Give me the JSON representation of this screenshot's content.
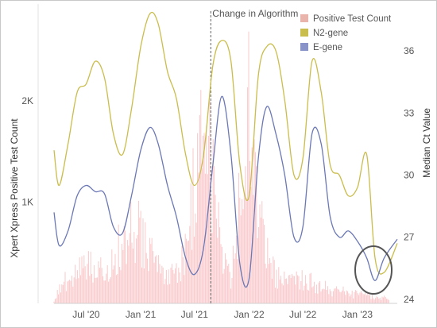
{
  "chart_data": {
    "type": "line",
    "title": "",
    "xlabel": "",
    "ylabel_left": "Xpert Xpress Positive Test Count",
    "ylabel_right": "Median Ct Value",
    "x_tick_labels": [
      "Jul '20",
      "Jan '21",
      "Jul '21",
      "Jan '22",
      "Jul '22",
      "Jan '23"
    ],
    "x_range": [
      "2020-03-15",
      "2023-05-15"
    ],
    "left_axis": {
      "range": [
        0,
        2900
      ],
      "ticks": [
        1000,
        2000
      ],
      "tick_labels": [
        "1K",
        "2K"
      ]
    },
    "right_axis": {
      "range": [
        23.8,
        38
      ],
      "ticks": [
        24,
        27,
        30,
        33,
        36
      ],
      "tick_labels": [
        "24",
        "27",
        "30",
        "33",
        "36"
      ]
    },
    "annotation": {
      "label": "Change in Algorithm",
      "date": "2021-08-25"
    },
    "legend": {
      "position": "top-right",
      "entries": [
        {
          "label": "Positive Test Count",
          "color": "#e8b4ac"
        },
        {
          "label": "N2-gene",
          "color": "#c9bd4e"
        },
        {
          "label": "E-gene",
          "color": "#8a93c8"
        }
      ]
    },
    "series": [
      {
        "name": "Positive Test Count",
        "axis": "left",
        "kind": "bars",
        "color": "#f9c9cb",
        "x": [
          "2020-03-15",
          "2020-04-01",
          "2020-05-01",
          "2020-06-01",
          "2020-07-01",
          "2020-08-01",
          "2020-09-01",
          "2020-10-01",
          "2020-11-01",
          "2020-12-01",
          "2021-01-01",
          "2021-02-01",
          "2021-03-01",
          "2021-04-01",
          "2021-05-01",
          "2021-06-01",
          "2021-07-01",
          "2021-08-01",
          "2021-09-01",
          "2021-10-01",
          "2021-11-01",
          "2021-12-01",
          "2022-01-01",
          "2022-02-01",
          "2022-03-01",
          "2022-04-01",
          "2022-05-01",
          "2022-06-01",
          "2022-07-01",
          "2022-08-01",
          "2022-09-01",
          "2022-10-01",
          "2022-11-01",
          "2022-12-01",
          "2023-01-01",
          "2023-02-01",
          "2023-03-01",
          "2023-04-01",
          "2023-05-15"
        ],
        "y": [
          50,
          250,
          350,
          450,
          550,
          600,
          500,
          650,
          900,
          1150,
          1000,
          700,
          500,
          450,
          400,
          800,
          1700,
          2450,
          1800,
          700,
          300,
          1500,
          2800,
          1400,
          700,
          400,
          350,
          400,
          350,
          300,
          250,
          200,
          180,
          150,
          130,
          120,
          100,
          80,
          50
        ]
      },
      {
        "name": "N2-gene",
        "axis": "right",
        "color": "#cabd4c",
        "x": [
          "2020-03-15",
          "2020-04-01",
          "2020-05-01",
          "2020-06-01",
          "2020-07-01",
          "2020-08-01",
          "2020-09-01",
          "2020-10-01",
          "2020-11-01",
          "2020-12-01",
          "2021-01-01",
          "2021-02-01",
          "2021-03-01",
          "2021-04-01",
          "2021-05-01",
          "2021-06-01",
          "2021-07-01",
          "2021-08-01",
          "2021-09-01",
          "2021-10-01",
          "2021-11-01",
          "2021-12-01",
          "2022-01-01",
          "2022-02-01",
          "2022-03-01",
          "2022-04-01",
          "2022-05-01",
          "2022-06-01",
          "2022-07-01",
          "2022-08-01",
          "2022-09-01",
          "2022-10-01",
          "2022-11-01",
          "2022-12-01",
          "2023-01-01",
          "2023-02-01",
          "2023-03-01",
          "2023-04-01",
          "2023-05-15"
        ],
        "y": [
          31.2,
          29.5,
          31.5,
          34.0,
          34.4,
          35.5,
          34.7,
          32.0,
          31.0,
          33.2,
          36.2,
          37.8,
          37.3,
          35.0,
          33.7,
          31.0,
          29.5,
          31.0,
          35.3,
          36.5,
          35.5,
          30.5,
          29.0,
          34.8,
          36.2,
          36.0,
          33.6,
          30.0,
          30.8,
          35.5,
          34.0,
          30.5,
          30.0,
          29.0,
          29.4,
          31.0,
          26.0,
          25.3,
          26.7
        ]
      },
      {
        "name": "E-gene",
        "axis": "right",
        "color": "#6b78b5",
        "x": [
          "2020-03-15",
          "2020-04-01",
          "2020-05-01",
          "2020-06-01",
          "2020-07-01",
          "2020-08-01",
          "2020-09-01",
          "2020-10-01",
          "2020-11-01",
          "2020-12-01",
          "2021-01-01",
          "2021-02-01",
          "2021-03-01",
          "2021-04-01",
          "2021-05-01",
          "2021-06-01",
          "2021-07-01",
          "2021-08-01",
          "2021-09-01",
          "2021-10-01",
          "2021-11-01",
          "2021-12-01",
          "2022-01-01",
          "2022-02-01",
          "2022-03-01",
          "2022-04-01",
          "2022-05-01",
          "2022-06-01",
          "2022-07-01",
          "2022-08-01",
          "2022-09-01",
          "2022-10-01",
          "2022-11-01",
          "2022-12-01",
          "2023-01-01",
          "2023-02-01",
          "2023-03-01",
          "2023-04-01",
          "2023-05-15"
        ],
        "y": [
          28.2,
          26.6,
          27.3,
          29.0,
          29.5,
          29.2,
          29.1,
          27.5,
          27.2,
          29.0,
          31.2,
          32.3,
          31.5,
          29.5,
          28.0,
          26.0,
          25.2,
          26.5,
          30.5,
          33.8,
          31.0,
          25.7,
          25.0,
          30.8,
          33.3,
          32.0,
          30.0,
          27.0,
          27.5,
          32.0,
          31.5,
          28.0,
          27.0,
          27.3,
          26.8,
          26.0,
          24.9,
          26.0,
          26.9
        ]
      }
    ],
    "grid": false
  }
}
